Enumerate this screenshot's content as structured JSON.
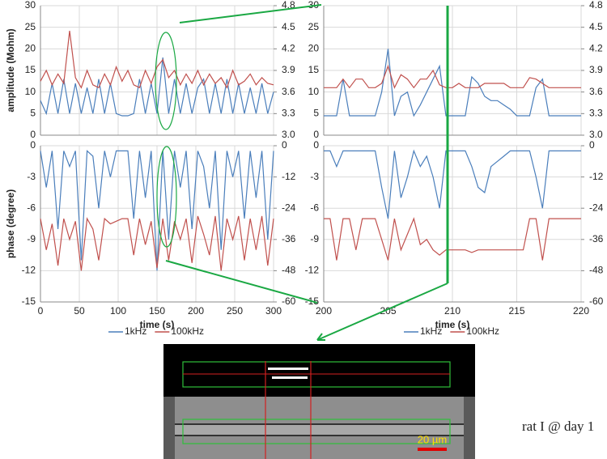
{
  "chart_data": [
    {
      "type": "line",
      "ylabel": "amplitude (Mohm)",
      "xlim": [
        0,
        300
      ],
      "x": [
        0,
        7.5,
        15,
        22.5,
        30,
        37.5,
        45,
        52.5,
        60,
        67.5,
        75,
        82.5,
        90,
        97.5,
        105,
        112.5,
        120,
        127.5,
        135,
        142.5,
        150,
        157.5,
        165,
        172.5,
        180,
        187.5,
        195,
        202.5,
        210,
        217.5,
        225,
        232.5,
        240,
        247.5,
        255,
        262.5,
        270,
        277.5,
        285,
        292.5,
        300
      ],
      "ylim": [
        0,
        30
      ],
      "yticks": [
        0,
        5,
        10,
        15,
        20,
        25,
        30
      ],
      "y2lim": [
        3,
        4.8
      ],
      "y2ticks": [
        {
          "value": 3,
          "label": "3.0"
        },
        3.3,
        3.6,
        3.9,
        4.2,
        4.5,
        4.8
      ],
      "grid": true,
      "series": [
        {
          "color": "#4a7ebb",
          "values": [
            8,
            5,
            12,
            5,
            13,
            5,
            12,
            5,
            11,
            5,
            13,
            5,
            12,
            5,
            4.5,
            4.5,
            5,
            13,
            5,
            12,
            5,
            18,
            5,
            13,
            5,
            12,
            5,
            11,
            13,
            5,
            12,
            5,
            13,
            5,
            12,
            5,
            11,
            5,
            12,
            5,
            10
          ]
        },
        {
          "color": "#c0504d",
          "axis": "y2",
          "values": [
            3.75,
            3.9,
            3.7,
            3.85,
            3.72,
            4.45,
            3.8,
            3.66,
            3.9,
            3.7,
            3.66,
            3.85,
            3.7,
            3.95,
            3.75,
            3.9,
            3.7,
            3.66,
            3.9,
            3.72,
            3.95,
            4.05,
            3.8,
            3.9,
            3.7,
            3.85,
            3.72,
            3.9,
            3.7,
            3.85,
            3.72,
            3.8,
            3.66,
            3.9,
            3.7,
            3.75,
            3.85,
            3.7,
            3.8,
            3.72,
            3.7
          ]
        }
      ]
    },
    {
      "type": "line",
      "ylabel": "phase (degree)",
      "xlabel": "time (s)",
      "xlim": [
        0,
        300
      ],
      "xticks": [
        0,
        50,
        100,
        150,
        200,
        250,
        300
      ],
      "x": [
        0,
        7.5,
        15,
        22.5,
        30,
        37.5,
        45,
        52.5,
        60,
        67.5,
        75,
        82.5,
        90,
        97.5,
        105,
        112.5,
        120,
        127.5,
        135,
        142.5,
        150,
        157.5,
        165,
        172.5,
        180,
        187.5,
        195,
        202.5,
        210,
        217.5,
        225,
        232.5,
        240,
        247.5,
        255,
        262.5,
        270,
        277.5,
        285,
        292.5,
        300
      ],
      "ylim": [
        -15,
        0
      ],
      "yticks": [
        -15,
        -12,
        -9,
        -6,
        -3,
        0
      ],
      "y2lim": [
        -60,
        0
      ],
      "y2ticks": [
        -60,
        -48,
        -36,
        -24,
        -12,
        0
      ],
      "grid": true,
      "series": [
        {
          "name": "1kHz",
          "color": "#4a7ebb",
          "values": [
            -0.5,
            -4,
            -0.5,
            -8,
            -0.5,
            -2,
            -0.5,
            -11,
            -0.5,
            -1,
            -6,
            -0.5,
            -3,
            -0.5,
            -0.5,
            -0.5,
            -7,
            -0.5,
            -5,
            -0.5,
            -12,
            -0.5,
            -9,
            -0.5,
            -4,
            -0.5,
            -8,
            -0.5,
            -2,
            -6,
            -0.5,
            -10,
            -0.5,
            -3,
            -0.5,
            -7,
            -0.5,
            -5,
            -0.5,
            -9,
            -0.5
          ]
        },
        {
          "name": "100kHz",
          "color": "#c0504d",
          "axis": "y2",
          "values": [
            -28,
            -40,
            -30,
            -46,
            -28,
            -36,
            -29,
            -48,
            -28,
            -32,
            -44,
            -28,
            -30,
            -29,
            -28,
            -28,
            -42,
            -28,
            -38,
            -29,
            -47,
            -28,
            -44,
            -29,
            -36,
            -28,
            -45,
            -27,
            -34,
            -42,
            -27,
            -48,
            -28,
            -36,
            -27,
            -44,
            -28,
            -40,
            -27,
            -46,
            -28
          ]
        }
      ]
    },
    {
      "type": "line",
      "xlim": [
        200,
        220
      ],
      "x": [
        200,
        200.5,
        201,
        201.5,
        202,
        202.5,
        203,
        203.5,
        204,
        204.5,
        205,
        205.5,
        206,
        206.5,
        207,
        207.5,
        208,
        208.5,
        209,
        209.5,
        210,
        210.5,
        211,
        211.5,
        212,
        212.5,
        213,
        213.5,
        214,
        214.5,
        215,
        215.5,
        216,
        216.5,
        217,
        217.5,
        218,
        218.5,
        219,
        219.5,
        220
      ],
      "ylim": [
        0,
        30
      ],
      "yticks": [
        0,
        5,
        10,
        15,
        20,
        25,
        30
      ],
      "y2lim": [
        3,
        4.8
      ],
      "y2ticks": [
        {
          "value": 3,
          "label": "3.0"
        },
        3.3,
        3.6,
        3.9,
        4.2,
        4.5,
        4.8
      ],
      "grid": true,
      "series": [
        {
          "color": "#4a7ebb",
          "values": [
            4.5,
            4.5,
            4.5,
            13,
            4.5,
            4.5,
            4.5,
            4.5,
            4.5,
            10,
            20,
            4.5,
            9,
            10,
            4.5,
            7,
            10,
            13,
            16,
            4.5,
            4.5,
            4.5,
            4.5,
            13.5,
            12,
            9,
            8,
            8,
            7,
            6,
            4.5,
            4.5,
            4.5,
            11,
            13,
            4.5,
            4.5,
            4.5,
            4.5,
            4.5,
            4.5
          ]
        },
        {
          "color": "#c0504d",
          "axis": "y2",
          "values": [
            3.66,
            3.66,
            3.66,
            3.78,
            3.66,
            3.78,
            3.78,
            3.66,
            3.66,
            3.72,
            3.96,
            3.66,
            3.84,
            3.78,
            3.66,
            3.78,
            3.78,
            3.9,
            3.7,
            3.66,
            3.66,
            3.72,
            3.66,
            3.66,
            3.66,
            3.72,
            3.72,
            3.72,
            3.72,
            3.66,
            3.66,
            3.66,
            3.8,
            3.78,
            3.72,
            3.66,
            3.66,
            3.66,
            3.66,
            3.66,
            3.66
          ]
        }
      ]
    },
    {
      "type": "line",
      "xlabel": "time (s)",
      "xlim": [
        200,
        220
      ],
      "xticks": [
        200,
        205,
        210,
        215,
        220
      ],
      "x": [
        200,
        200.5,
        201,
        201.5,
        202,
        202.5,
        203,
        203.5,
        204,
        204.5,
        205,
        205.5,
        206,
        206.5,
        207,
        207.5,
        208,
        208.5,
        209,
        209.5,
        210,
        210.5,
        211,
        211.5,
        212,
        212.5,
        213,
        213.5,
        214,
        214.5,
        215,
        215.5,
        216,
        216.5,
        217,
        217.5,
        218,
        218.5,
        219,
        219.5,
        220
      ],
      "ylim": [
        -15,
        0
      ],
      "yticks": [
        -15,
        -12,
        -9,
        -6,
        -3,
        0
      ],
      "y2lim": [
        -60,
        0
      ],
      "y2ticks": [
        -60,
        -48,
        -36,
        -24,
        -12,
        0
      ],
      "grid": true,
      "series": [
        {
          "name": "1kHz",
          "color": "#4a7ebb",
          "values": [
            -0.5,
            -0.5,
            -2,
            -0.5,
            -0.5,
            -0.5,
            -0.5,
            -0.5,
            -0.5,
            -4,
            -7,
            -0.5,
            -5,
            -3,
            -0.5,
            -2,
            -1,
            -3,
            -6,
            -0.5,
            -0.5,
            -0.5,
            -0.5,
            -2,
            -4,
            -4.5,
            -2,
            -1.5,
            -1,
            -0.5,
            -0.5,
            -0.5,
            -0.5,
            -3,
            -6,
            -0.5,
            -0.5,
            -0.5,
            -0.5,
            -0.5,
            -0.5
          ]
        },
        {
          "name": "100kHz",
          "color": "#c0504d",
          "axis": "y2",
          "values": [
            -28,
            -28,
            -44,
            -28,
            -28,
            -40,
            -28,
            -28,
            -28,
            -36,
            -44,
            -28,
            -40,
            -34,
            -28,
            -38,
            -36,
            -40,
            -42,
            -40,
            -40,
            -40,
            -40,
            -41,
            -40,
            -40,
            -40,
            -40,
            -40,
            -40,
            -40,
            -40,
            -28,
            -28,
            -44,
            -28,
            -28,
            -28,
            -28,
            -28,
            -28
          ]
        }
      ]
    }
  ],
  "image": {
    "scale_label": "20 µm",
    "caption": "rat I @ day 1"
  }
}
